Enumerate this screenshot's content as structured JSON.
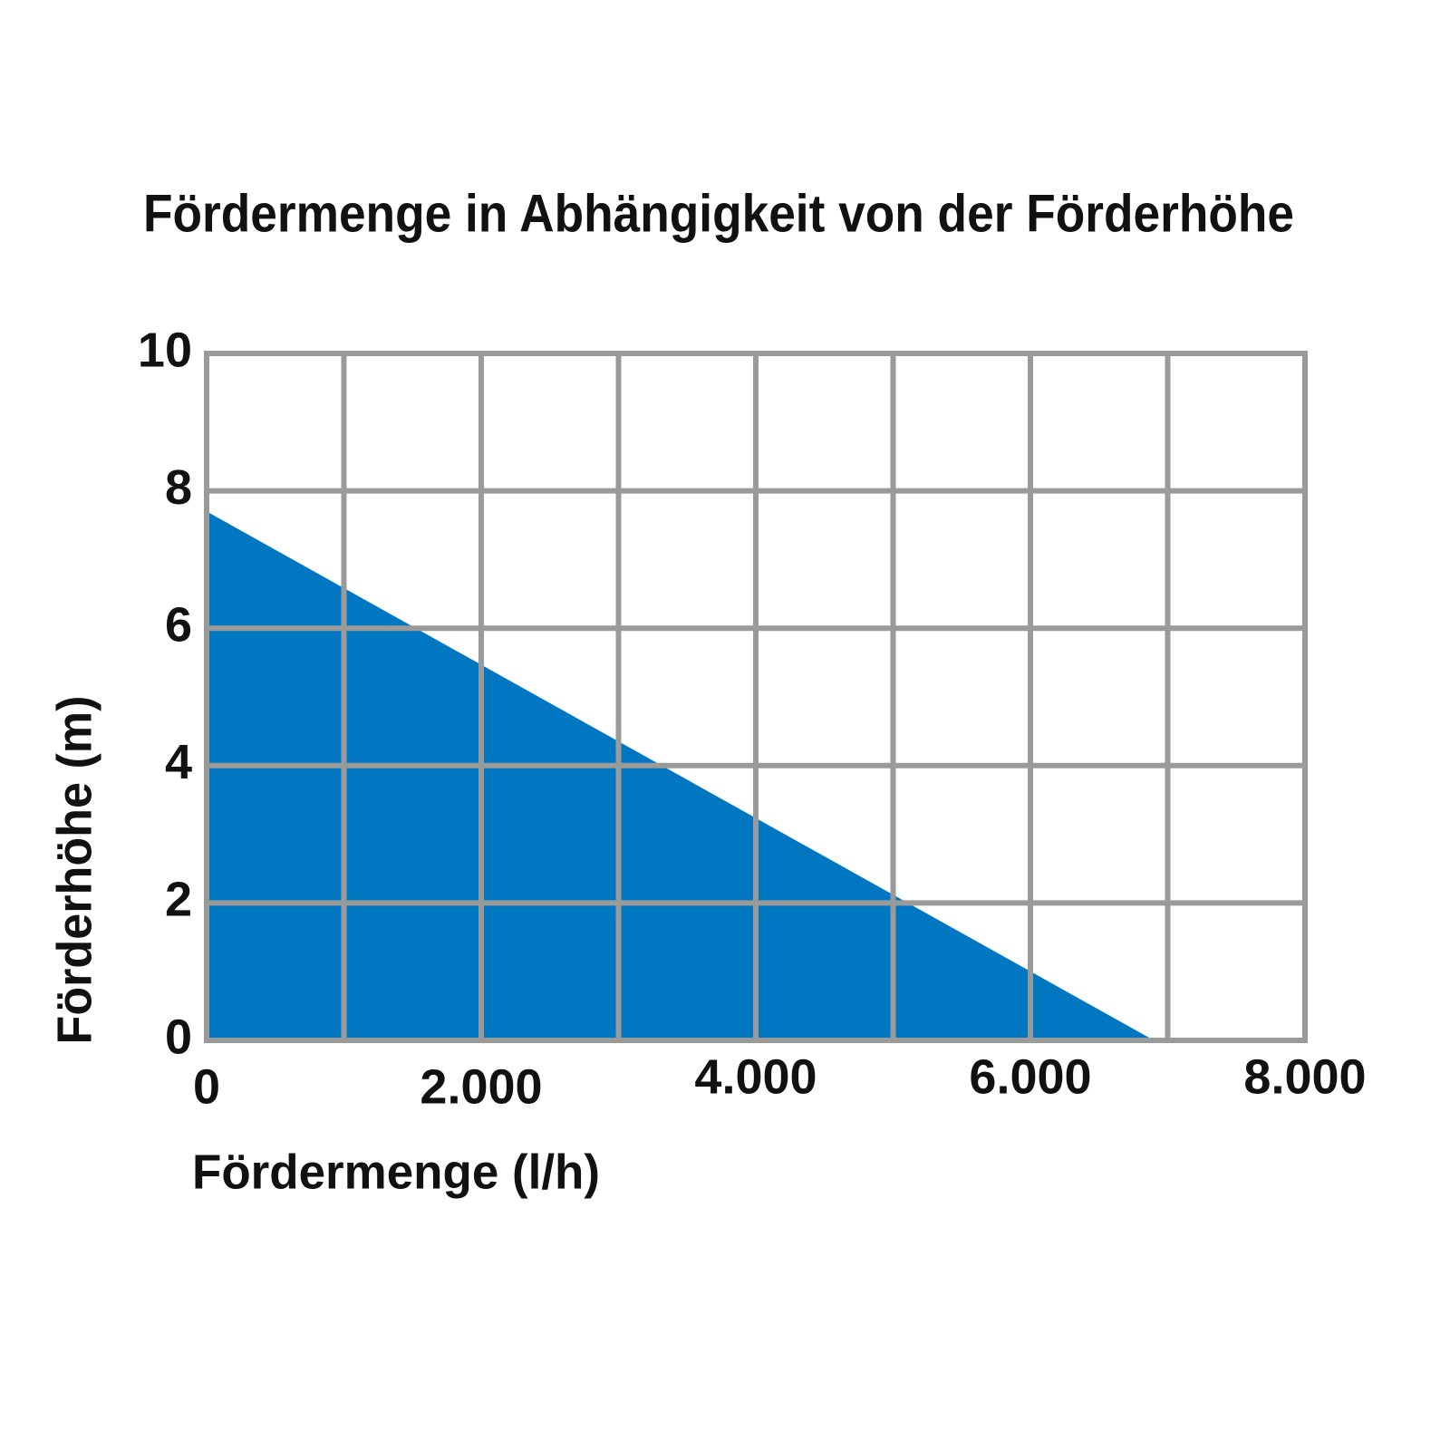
{
  "chart_data": {
    "type": "area",
    "title": "Fördermenge in Abhängigkeit von der Förderhöhe",
    "x_label": "Fördermenge (l/h)",
    "y_label": "Förderhöhe (m)",
    "x": [
      0,
      6900
    ],
    "values": [
      7.7,
      0
    ],
    "color": "#0077c0",
    "xlim": [
      0,
      8000
    ],
    "xticks": [
      0,
      {
        "value": 2000,
        "label": "2.000"
      },
      {
        "value": 4000,
        "label": "4.000"
      },
      {
        "value": 6000,
        "label": "6.000"
      },
      {
        "value": 8000,
        "label": "8.000"
      }
    ],
    "xgrid": [
      0,
      1000,
      2000,
      3000,
      4000,
      5000,
      6000,
      7000,
      8000
    ],
    "ylim": [
      0,
      10
    ],
    "yticks": [
      0,
      2,
      4,
      6,
      8,
      10
    ],
    "grid": true,
    "grid_color": "#9a9a9a"
  }
}
